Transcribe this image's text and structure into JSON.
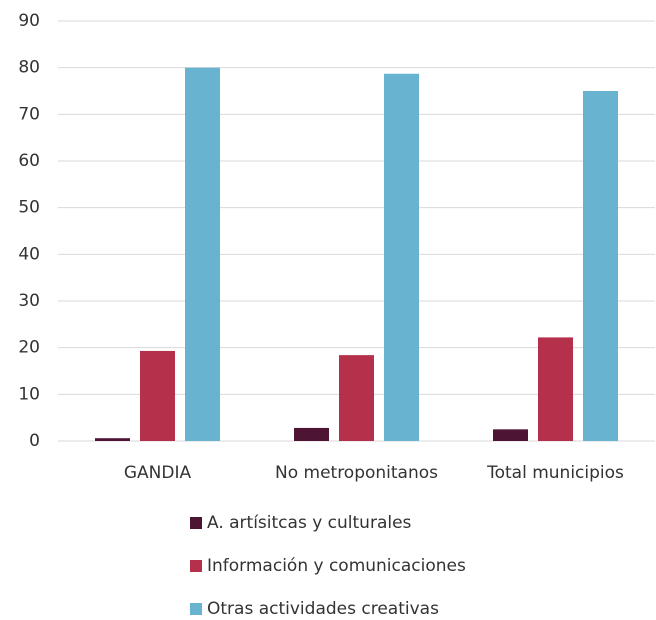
{
  "chart_data": {
    "type": "bar",
    "categories": [
      "GANDIA",
      "No metroponitanos",
      "Total municipios"
    ],
    "series": [
      {
        "name": "A. artísitcas y culturales",
        "color": "#4d1434",
        "values": [
          0.6,
          2.8,
          2.5
        ]
      },
      {
        "name": "Información y comunicaciones",
        "color": "#b5304a",
        "values": [
          19.3,
          18.4,
          22.2
        ]
      },
      {
        "name": "Otras actividades creativas",
        "color": "#68b4d0",
        "values": [
          80,
          78.7,
          75
        ]
      }
    ],
    "ylim": [
      0,
      90
    ],
    "yticks": [
      0,
      10,
      20,
      30,
      40,
      50,
      60,
      70,
      80,
      90
    ],
    "grid": true,
    "legend": "bottom"
  }
}
